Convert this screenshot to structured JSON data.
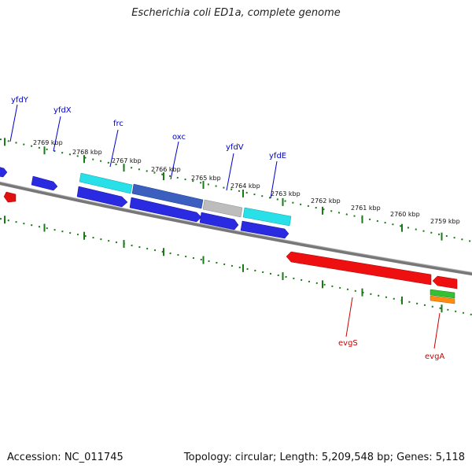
{
  "title": "Escherichia coli ED1a, complete genome",
  "footer": {
    "accession": "Accession: NC_011745",
    "summary": "Topology: circular; Length: 5,209,548 bp; Genes: 5,118"
  },
  "colors": {
    "backbone": "#777777",
    "ticks": "#1a7a1a",
    "forward_label": "#0000cc",
    "reverse_label": "#cc0000"
  },
  "position_labels": [
    "2769 kbp",
    "2768 kbp",
    "2767 kbp",
    "2766 kbp",
    "2765 kbp",
    "2764 kbp",
    "2763 kbp",
    "2762 kbp",
    "2761 kbp",
    "2760 kbp",
    "2759 kbp"
  ],
  "gene_labels": {
    "forward": [
      "yfdY",
      "yfdX",
      "frc",
      "oxc",
      "yfdV",
      "yfdE"
    ],
    "reverse": [
      "evgS",
      "evgA"
    ]
  }
}
